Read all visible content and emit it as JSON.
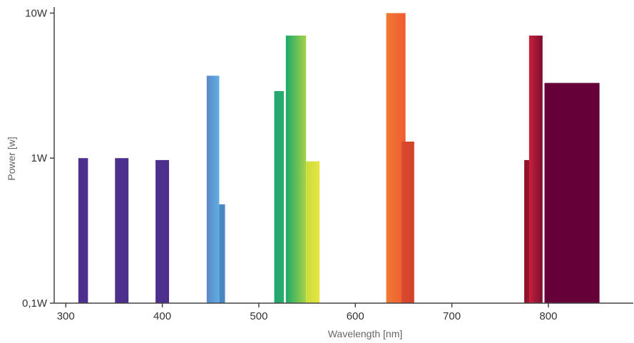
{
  "chart_data": {
    "type": "bar",
    "title": "",
    "xlabel": "Wavelength [nm]",
    "ylabel": "Power [w]",
    "x_ticks": [
      300,
      400,
      500,
      600,
      700,
      800
    ],
    "x_tick_labels": [
      "300",
      "400",
      "500",
      "600",
      "700",
      "800"
    ],
    "y_ticks": [
      0.1,
      1,
      10
    ],
    "y_tick_labels": [
      "0,1W",
      "1W",
      "10W"
    ],
    "y_scale": "log",
    "xlim": [
      288,
      888
    ],
    "ylim": [
      0.1,
      11
    ],
    "grid": false,
    "legend": "none",
    "bars": [
      {
        "x0": 313,
        "x1": 323,
        "value": 1.0,
        "colors": [
          "#4d2f8e",
          "#4d2f8e"
        ]
      },
      {
        "x0": 351,
        "x1": 365,
        "value": 1.0,
        "colors": [
          "#4d2f8e",
          "#4d2f8e"
        ]
      },
      {
        "x0": 393,
        "x1": 407,
        "value": 0.97,
        "colors": [
          "#4d2f8e",
          "#4d2f8e"
        ]
      },
      {
        "x0": 446,
        "x1": 459,
        "value": 3.7,
        "colors": [
          "#5c86c8",
          "#5fb0e4"
        ]
      },
      {
        "x0": 459,
        "x1": 465,
        "value": 0.48,
        "colors": [
          "#4a86c1",
          "#4a86c1"
        ]
      },
      {
        "x0": 516,
        "x1": 526,
        "value": 2.9,
        "colors": [
          "#22a56e",
          "#2aae6a"
        ]
      },
      {
        "x0": 528,
        "x1": 549,
        "value": 7.0,
        "colors": [
          "#1ca86b",
          "#a7d247"
        ]
      },
      {
        "x0": 549,
        "x1": 563,
        "value": 0.95,
        "colors": [
          "#c8de3a",
          "#e9e443"
        ]
      },
      {
        "x0": 632,
        "x1": 652,
        "value": 10.0,
        "colors": [
          "#ef7b32",
          "#f05a32"
        ]
      },
      {
        "x0": 648,
        "x1": 661,
        "value": 1.3,
        "colors": [
          "#d94a2e",
          "#d34129"
        ]
      },
      {
        "x0": 775,
        "x1": 791,
        "value": 0.97,
        "colors": [
          "#8d1228",
          "#a01830"
        ]
      },
      {
        "x0": 780,
        "x1": 794,
        "value": 7.0,
        "colors": [
          "#c8213f",
          "#7c0e2c"
        ]
      },
      {
        "x0": 796,
        "x1": 853,
        "value": 3.3,
        "colors": [
          "#650038",
          "#650038"
        ]
      }
    ],
    "colors": {
      "axis": "#444444",
      "tick_text": "#333333",
      "label_text": "#666666"
    }
  }
}
